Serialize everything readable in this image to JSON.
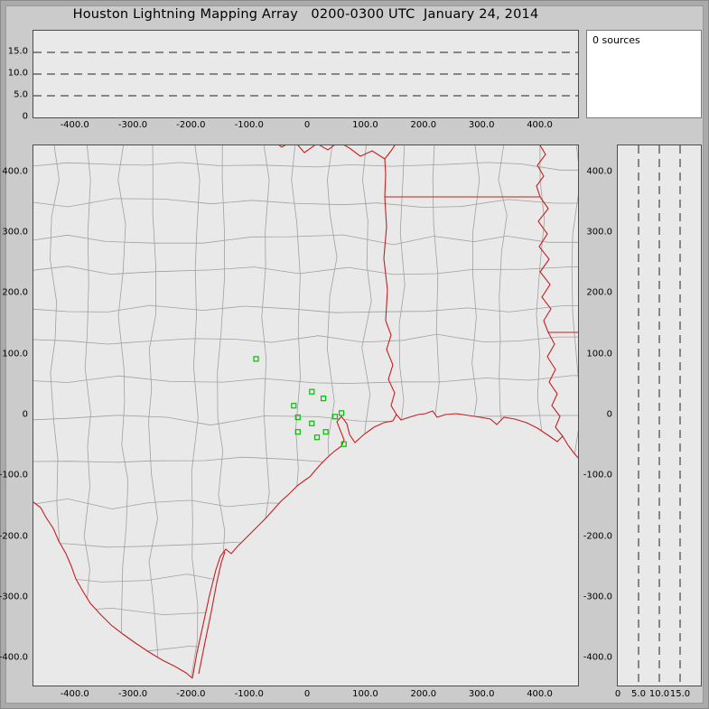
{
  "title": "Houston Lightning Mapping Array   0200-0300 UTC  January 24, 2014",
  "sources": {
    "label": "0 sources",
    "count": 0
  },
  "colors": {
    "background": "#cbcbcb",
    "panel_bg": "#e9e9e9",
    "sources_panel_bg": "#ffffff",
    "state_border": "#c42020",
    "county_line": "#a0a0a0",
    "station": "#00c000",
    "dashed_line": "#222222",
    "text": "#000000"
  },
  "chart_data": [
    {
      "type": "scatter",
      "name": "altitude-vs-east-west",
      "title": "",
      "xlabel": "",
      "ylabel": "",
      "x_ticks": [
        "-400.0",
        "-300.0",
        "-200.0",
        "-100.0",
        "0",
        "100.0",
        "200.0",
        "300.0",
        "400.0"
      ],
      "x_tick_values": [
        -400,
        -300,
        -200,
        -100,
        0,
        100,
        200,
        300,
        400
      ],
      "x_range": [
        -471,
        466
      ],
      "y_ticks": [
        "15.0",
        "10.0",
        "5.0",
        "0"
      ],
      "y_tick_values": [
        15,
        10,
        5,
        0
      ],
      "y_range": [
        0,
        20
      ],
      "dashed_y": [
        5,
        10,
        15
      ],
      "grid": "dashed-horizontal",
      "points": []
    },
    {
      "type": "scatter",
      "name": "plan-view-map",
      "title": "",
      "xlabel": "",
      "ylabel": "",
      "x_ticks": [
        "-400.0",
        "-300.0",
        "-200.0",
        "-100.0",
        "0",
        "100.0",
        "200.0",
        "300.0",
        "400.0"
      ],
      "x_tick_values": [
        -400,
        -300,
        -200,
        -100,
        0,
        100,
        200,
        300,
        400
      ],
      "x_range": [
        -471,
        466
      ],
      "y_ticks": [
        "400.0",
        "300.0",
        "200.0",
        "100.0",
        "0",
        "-100.0",
        "-200.0",
        "-300.0",
        "-400.0"
      ],
      "y_tick_values": [
        400,
        300,
        200,
        100,
        0,
        -100,
        -200,
        -300,
        -400
      ],
      "y_range": [
        -444,
        444
      ],
      "marker": "open-square",
      "stations_km": [
        [
          -88,
          93
        ],
        [
          8,
          39
        ],
        [
          28,
          28
        ],
        [
          -23,
          16
        ],
        [
          -16,
          -3
        ],
        [
          8,
          -13
        ],
        [
          48,
          -2
        ],
        [
          59,
          4
        ],
        [
          -16,
          -27
        ],
        [
          17,
          -36
        ],
        [
          32,
          -27
        ],
        [
          63,
          -47
        ]
      ],
      "source_points": [],
      "basemap": "state-borders-red-county-lines-gray-gulf-coast"
    },
    {
      "type": "scatter",
      "name": "altitude-vs-north-south",
      "title": "",
      "xlabel": "",
      "ylabel": "",
      "x_ticks": [
        "0",
        "5.0",
        "10.0",
        "15.0"
      ],
      "x_tick_values": [
        0,
        5,
        10,
        15
      ],
      "x_range": [
        0,
        20
      ],
      "y_ticks": [
        "400.0",
        "300.0",
        "200.0",
        "100.0",
        "0",
        "-100.0",
        "-200.0",
        "-300.0",
        "-400.0"
      ],
      "y_tick_values": [
        400,
        300,
        200,
        100,
        0,
        -100,
        -200,
        -300,
        -400
      ],
      "y_range": [
        -444,
        444
      ],
      "dashed_x": [
        5,
        10,
        15
      ],
      "grid": "dashed-vertical",
      "points": []
    }
  ]
}
